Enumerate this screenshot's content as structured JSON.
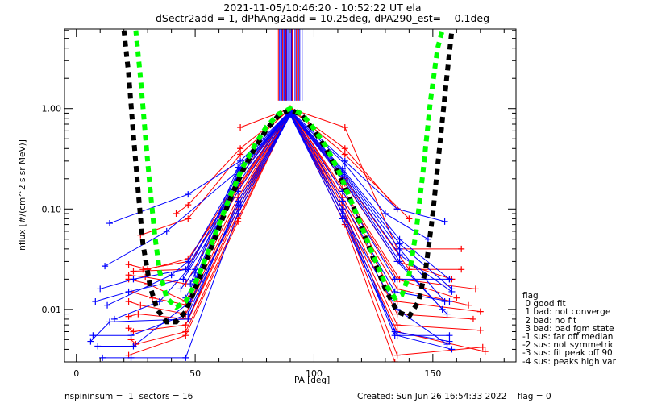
{
  "chart_data": {
    "type": "line",
    "title": "2021-11-05/10:46:20 - 10:52:22 UT ela",
    "subtitle": "dSectr2add = 1, dPhAng2add = 10.25deg, dPA290_est=   -0.1deg",
    "xlabel": "PA [deg]",
    "ylabel": "nflux [#/(cm^2 s sr MeV)]",
    "xlim": [
      -5,
      185
    ],
    "ylim": [
      0.003,
      6.2
    ],
    "yscale": "log",
    "x_ticks": [
      0,
      50,
      100,
      150
    ],
    "x_tick_labels": [
      "0",
      "50",
      "100",
      "150"
    ],
    "y_ticks": [
      0.01,
      0.1,
      1.0
    ],
    "y_tick_labels": [
      "0.01",
      "0.10",
      "1.00"
    ],
    "grid": false,
    "fit_curves": [
      {
        "name": "fit-black",
        "color": "#000000",
        "style": "dashed",
        "x": [
          20,
          22,
          24,
          26,
          28,
          31,
          34,
          38,
          42,
          46,
          50,
          55,
          60,
          65,
          70,
          75,
          80,
          85,
          90,
          95,
          100,
          105,
          110,
          115,
          120,
          125,
          130,
          135,
          140,
          144,
          147,
          150,
          153,
          156,
          158
        ],
        "y": [
          6.0,
          2.2,
          0.55,
          0.15,
          0.045,
          0.017,
          0.01,
          0.0075,
          0.0075,
          0.0095,
          0.016,
          0.032,
          0.065,
          0.13,
          0.24,
          0.4,
          0.62,
          0.85,
          0.98,
          0.85,
          0.6,
          0.4,
          0.23,
          0.13,
          0.065,
          0.032,
          0.016,
          0.0095,
          0.0085,
          0.012,
          0.025,
          0.09,
          0.45,
          2.2,
          6.0
        ]
      },
      {
        "name": "fit-green",
        "color": "#00ff00",
        "style": "dashed",
        "x": [
          25,
          27,
          29,
          31,
          33,
          35,
          38,
          42,
          46,
          50,
          55,
          60,
          65,
          70,
          75,
          80,
          85,
          90,
          95,
          100,
          105,
          110,
          115,
          120,
          125,
          130,
          134,
          137,
          140,
          143,
          146,
          149,
          152,
          154
        ],
        "y": [
          6.0,
          2.0,
          0.55,
          0.16,
          0.055,
          0.024,
          0.013,
          0.0105,
          0.012,
          0.018,
          0.035,
          0.07,
          0.14,
          0.26,
          0.43,
          0.66,
          0.88,
          1.0,
          0.88,
          0.63,
          0.42,
          0.25,
          0.13,
          0.068,
          0.034,
          0.018,
          0.013,
          0.014,
          0.022,
          0.06,
          0.25,
          1.2,
          4.0,
          6.0
        ]
      }
    ],
    "series_blue": {
      "name": "flux-spectra-flag0",
      "color": "#0000ff",
      "marker": "+",
      "lines": [
        {
          "x": [
            14,
            47,
            69,
            90,
            113,
            135,
            155
          ],
          "y": [
            0.072,
            0.14,
            0.3,
            0.95,
            0.3,
            0.1,
            0.075
          ]
        },
        {
          "x": [
            12,
            38,
            69,
            90,
            113,
            130,
            148
          ],
          "y": [
            0.027,
            0.06,
            0.25,
            0.93,
            0.28,
            0.09,
            0.05
          ]
        },
        {
          "x": [
            10,
            24,
            46,
            68,
            90,
            112,
            134,
            157
          ],
          "y": [
            0.016,
            0.02,
            0.025,
            0.18,
            0.9,
            0.15,
            0.02,
            0.02
          ]
        },
        {
          "x": [
            8,
            22,
            45,
            68,
            90,
            112,
            134,
            157
          ],
          "y": [
            0.012,
            0.015,
            0.02,
            0.15,
            0.9,
            0.12,
            0.015,
            0.012
          ]
        },
        {
          "x": [
            6,
            14,
            47,
            68,
            90,
            112,
            134,
            157
          ],
          "y": [
            0.0048,
            0.0075,
            0.008,
            0.12,
            0.88,
            0.1,
            0.006,
            0.0048
          ]
        },
        {
          "x": [
            7,
            23,
            47,
            68,
            90,
            112,
            134,
            157
          ],
          "y": [
            0.0055,
            0.0055,
            0.009,
            0.11,
            0.87,
            0.09,
            0.0055,
            0.0055
          ]
        },
        {
          "x": [
            9,
            24,
            48,
            69,
            90,
            112,
            135,
            156
          ],
          "y": [
            0.0043,
            0.0043,
            0.012,
            0.11,
            0.87,
            0.09,
            0.01,
            0.0045
          ]
        },
        {
          "x": [
            11,
            23,
            46,
            68,
            90,
            112,
            135,
            158
          ],
          "y": [
            0.0033,
            0.0033,
            0.0033,
            0.09,
            0.86,
            0.08,
            0.0055,
            0.004
          ]
        },
        {
          "x": [
            16,
            35,
            47,
            68,
            90,
            112,
            135,
            156
          ],
          "y": [
            0.008,
            0.012,
            0.025,
            0.2,
            0.92,
            0.2,
            0.03,
            0.009
          ]
        },
        {
          "x": [
            13,
            40,
            47,
            68,
            90,
            112,
            136,
            158
          ],
          "y": [
            0.011,
            0.022,
            0.03,
            0.22,
            0.92,
            0.22,
            0.035,
            0.015
          ]
        },
        {
          "x": [
            44,
            50,
            68,
            90,
            112,
            136,
            157
          ],
          "y": [
            0.016,
            0.025,
            0.26,
            0.95,
            0.25,
            0.05,
            0.02
          ]
        },
        {
          "x": [
            46,
            50,
            68,
            90,
            112,
            136,
            155
          ],
          "y": [
            0.013,
            0.02,
            0.22,
            0.94,
            0.23,
            0.04,
            0.012
          ]
        },
        {
          "x": [
            47,
            50,
            68,
            90,
            112,
            136,
            154
          ],
          "y": [
            0.012,
            0.019,
            0.2,
            0.93,
            0.21,
            0.03,
            0.01
          ]
        },
        {
          "x": [
            48,
            50,
            68,
            90,
            112,
            136,
            158
          ],
          "y": [
            0.018,
            0.023,
            0.24,
            0.95,
            0.24,
            0.045,
            0.016
          ]
        }
      ]
    },
    "series_red": {
      "name": "flux-spectra-flag-other",
      "color": "#ff0000",
      "marker": "+",
      "lines": [
        {
          "x": [
            69,
            90,
            113,
            135,
            162
          ],
          "y": [
            0.65,
            1.0,
            0.65,
            0.04,
            0.04
          ]
        },
        {
          "x": [
            42,
            47,
            69,
            90,
            113,
            135
          ],
          "y": [
            0.09,
            0.11,
            0.4,
            1.0,
            0.4,
            0.1
          ]
        },
        {
          "x": [
            27,
            47,
            69,
            90,
            113,
            140
          ],
          "y": [
            0.055,
            0.08,
            0.35,
            1.0,
            0.35,
            0.08
          ]
        },
        {
          "x": [
            22,
            30,
            47,
            69,
            90,
            113,
            135,
            158
          ],
          "y": [
            0.028,
            0.025,
            0.032,
            0.18,
            1.0,
            0.18,
            0.03,
            0.02
          ]
        },
        {
          "x": [
            22,
            29,
            46,
            68,
            90,
            112,
            135,
            160
          ],
          "y": [
            0.022,
            0.021,
            0.018,
            0.15,
            0.98,
            0.15,
            0.02,
            0.013
          ]
        },
        {
          "x": [
            22,
            30,
            46,
            68,
            90,
            112,
            135,
            165
          ],
          "y": [
            0.02,
            0.018,
            0.012,
            0.13,
            0.97,
            0.13,
            0.016,
            0.011
          ]
        },
        {
          "x": [
            23,
            32,
            47,
            68,
            90,
            112,
            135,
            170
          ],
          "y": [
            0.015,
            0.013,
            0.011,
            0.12,
            0.96,
            0.12,
            0.012,
            0.0095
          ]
        },
        {
          "x": [
            22,
            27,
            46,
            68,
            90,
            112,
            135,
            167
          ],
          "y": [
            0.012,
            0.011,
            0.009,
            0.11,
            0.95,
            0.11,
            0.009,
            0.008
          ]
        },
        {
          "x": [
            22,
            26,
            47,
            68,
            90,
            112,
            135,
            170
          ],
          "y": [
            0.0085,
            0.009,
            0.008,
            0.1,
            0.95,
            0.1,
            0.007,
            0.0062
          ]
        },
        {
          "x": [
            22,
            24,
            46,
            68,
            90,
            112,
            135,
            172
          ],
          "y": [
            0.0065,
            0.006,
            0.007,
            0.09,
            0.94,
            0.09,
            0.006,
            0.0038
          ]
        },
        {
          "x": [
            23,
            25,
            46,
            68,
            90,
            113,
            135,
            171
          ],
          "y": [
            0.005,
            0.0045,
            0.006,
            0.08,
            0.93,
            0.08,
            0.0035,
            0.0042
          ]
        },
        {
          "x": [
            22,
            46,
            68,
            90,
            113,
            134
          ],
          "y": [
            0.0035,
            0.0055,
            0.075,
            0.92,
            0.07,
            0.003
          ]
        },
        {
          "x": [
            28,
            47,
            68,
            90,
            113,
            140,
            162
          ],
          "y": [
            0.025,
            0.03,
            0.2,
            0.98,
            0.2,
            0.025,
            0.025
          ]
        },
        {
          "x": [
            24,
            46,
            68,
            90,
            112,
            136,
            168
          ],
          "y": [
            0.024,
            0.025,
            0.16,
            0.97,
            0.16,
            0.02,
            0.016
          ]
        }
      ]
    },
    "vertical_lines": {
      "blue_x": [
        85.5,
        86,
        86.5,
        87,
        87.5,
        88,
        88.5,
        89,
        89.5,
        90,
        90.5,
        91,
        92,
        93,
        94,
        95
      ],
      "red_x": [
        85,
        86.8,
        88.2,
        90.8,
        92.5,
        93.5
      ],
      "y_top": 6.2,
      "y_bottom": 1.2
    },
    "legend": {
      "title": "flag",
      "entries": [
        " 0 good fit",
        " 1 bad: not converge",
        " 2 bad: no fit",
        " 3 bad: bad fgm state",
        "-1 sus: far off median",
        "-2 sus: not symmetric",
        "-3 sus: fit peak off 90",
        "-4 sus: peaks high var"
      ],
      "placement": "right"
    }
  },
  "footer": {
    "left": "nspininsum =  1  sectors = 16",
    "right": "Created: Sun Jun 26 16:54:33 2022    flag = 0"
  }
}
